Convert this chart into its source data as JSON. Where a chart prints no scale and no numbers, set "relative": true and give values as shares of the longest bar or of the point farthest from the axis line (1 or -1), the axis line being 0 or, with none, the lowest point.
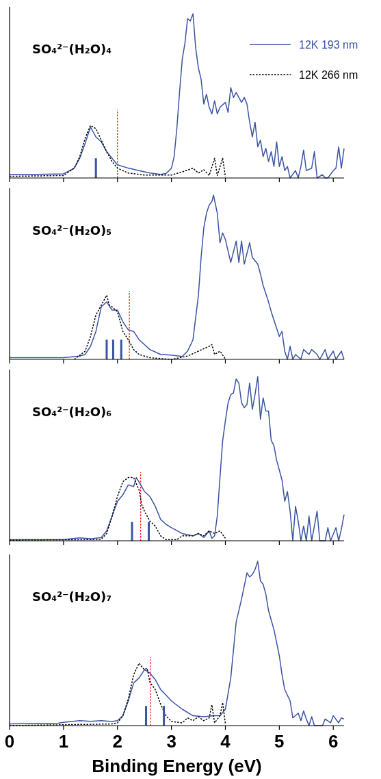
{
  "chart_data": [
    {
      "type": "line",
      "title": "SO₄²⁻(H₂O)₄",
      "relative": true,
      "xlim": [
        0,
        6.2
      ],
      "xticks": [
        0,
        1,
        2,
        3,
        4,
        5,
        6
      ],
      "tick_labels": false,
      "legend": "top right",
      "ref_lines": [
        {
          "axis": "x",
          "value": 2.0,
          "color": "#ff0000",
          "line_style": "dotted"
        }
      ],
      "series": [
        {
          "name": "12K 193 nm",
          "color": "#3a53a4",
          "line_style": "solid",
          "x": [
            0,
            0.5,
            1.0,
            1.2,
            1.3,
            1.4,
            1.5,
            1.6,
            1.7,
            1.8,
            1.9,
            2.0,
            2.2,
            2.4,
            2.6,
            2.8,
            2.9,
            3.0,
            3.05,
            3.1,
            3.15,
            3.2,
            3.25,
            3.3,
            3.35,
            3.4,
            3.45,
            3.5,
            3.55,
            3.6,
            3.65,
            3.7,
            3.75,
            3.8,
            3.85,
            3.9,
            4.0,
            4.05,
            4.1,
            4.15,
            4.2,
            4.3,
            4.35,
            4.4,
            4.45,
            4.5,
            4.55,
            4.6,
            4.65,
            4.7,
            4.75,
            4.8,
            4.85,
            4.9,
            4.95,
            5.0,
            5.05,
            5.1,
            5.15,
            5.2,
            5.3,
            5.35,
            5.4,
            5.45,
            5.5,
            5.6,
            5.65,
            5.7,
            5.8,
            5.85,
            5.9,
            6.0,
            6.05,
            6.1,
            6.15,
            6.2
          ],
          "values": [
            0.022,
            0.022,
            0.025,
            0.06,
            0.12,
            0.21,
            0.31,
            0.25,
            0.22,
            0.16,
            0.12,
            0.08,
            0.06,
            0.045,
            0.03,
            0.022,
            0.027,
            0.06,
            0.13,
            0.3,
            0.52,
            0.72,
            0.82,
            0.97,
            0.955,
            1.0,
            0.79,
            0.67,
            0.6,
            0.45,
            0.51,
            0.43,
            0.39,
            0.47,
            0.39,
            0.43,
            0.46,
            0.4,
            0.55,
            0.49,
            0.52,
            0.46,
            0.49,
            0.45,
            0.34,
            0.25,
            0.34,
            0.19,
            0.23,
            0.13,
            0.18,
            0.1,
            0.16,
            0.07,
            0.22,
            0.07,
            0.13,
            0.045,
            0.07,
            0,
            0.045,
            0,
            0.07,
            0.17,
            0.045,
            0.06,
            0.16,
            0,
            0.02,
            0,
            0,
            0.045,
            0.06,
            0.19,
            0.06,
            0.18
          ]
        },
        {
          "name": "12K 266 nm",
          "color": "#000000",
          "line_style": "dotted",
          "x": [
            0,
            1.0,
            1.2,
            1.3,
            1.4,
            1.5,
            1.6,
            1.7,
            1.8,
            1.9,
            2.0,
            2.2,
            2.5,
            3.0,
            3.2,
            3.4,
            3.5,
            3.6,
            3.7,
            3.8,
            3.85,
            3.95,
            4.0
          ],
          "values": [
            0.01,
            0.015,
            0.06,
            0.13,
            0.24,
            0.32,
            0.3,
            0.23,
            0.16,
            0.1,
            0.06,
            0.03,
            0.018,
            0.018,
            0.037,
            0.06,
            0.03,
            0.05,
            0.015,
            0.12,
            0.015,
            0.12,
            0.007
          ]
        },
        {
          "type": "bar",
          "color": "#3a53a4",
          "x": [
            1.6
          ],
          "values": [
            0.12
          ]
        }
      ]
    },
    {
      "type": "line",
      "title": "SO₄²⁻(H₂O)₅",
      "relative": true,
      "xlim": [
        0,
        6.2
      ],
      "xticks": [
        0,
        1,
        2,
        3,
        4,
        5,
        6
      ],
      "tick_labels": false,
      "ref_lines": [
        {
          "axis": "x",
          "value": 2.22,
          "color": "#ff0000",
          "line_style": "dotted"
        }
      ],
      "series": [
        {
          "color": "#3a53a4",
          "line_style": "solid",
          "x": [
            0,
            1.0,
            1.3,
            1.4,
            1.5,
            1.6,
            1.7,
            1.8,
            1.9,
            2.0,
            2.1,
            2.2,
            2.3,
            2.4,
            2.6,
            2.8,
            3.0,
            3.2,
            3.3,
            3.4,
            3.5,
            3.55,
            3.6,
            3.65,
            3.7,
            3.75,
            3.78,
            3.85,
            3.9,
            3.95,
            4.0,
            4.1,
            4.2,
            4.25,
            4.3,
            4.35,
            4.45,
            4.5,
            4.6,
            4.65,
            4.7,
            4.8,
            4.85,
            4.9,
            5.0,
            5.05,
            5.1,
            5.15,
            5.2,
            5.25,
            5.3,
            5.4,
            5.45,
            5.55,
            5.6,
            5.7,
            5.75,
            5.85,
            5.9,
            6.0,
            6.05,
            6.15,
            6.2
          ],
          "values": [
            0.01,
            0.01,
            0.02,
            0.03,
            0.08,
            0.17,
            0.32,
            0.35,
            0.3,
            0.3,
            0.23,
            0.18,
            0.17,
            0.12,
            0.06,
            0.03,
            0.026,
            0.018,
            0.05,
            0.12,
            0.39,
            0.62,
            0.8,
            0.89,
            0.94,
            0.96,
            1.0,
            0.89,
            0.71,
            0.77,
            0.73,
            0.59,
            0.72,
            0.59,
            0.72,
            0.58,
            0.71,
            0.62,
            0.58,
            0.52,
            0.45,
            0.35,
            0.29,
            0.24,
            0.14,
            0.17,
            0.05,
            0,
            0.08,
            0,
            0.03,
            0,
            0.06,
            0.03,
            0.06,
            0.03,
            0,
            0.06,
            0,
            0.05,
            0,
            0.05,
            0
          ]
        },
        {
          "color": "#000000",
          "line_style": "dotted",
          "x": [
            1.2,
            1.4,
            1.5,
            1.6,
            1.7,
            1.8,
            1.85,
            1.9,
            2.0,
            2.1,
            2.2,
            2.3,
            2.4,
            2.6,
            3.0,
            3.3,
            3.5,
            3.7,
            3.75,
            3.8,
            3.9,
            4.0
          ],
          "values": [
            0,
            0.05,
            0.14,
            0.27,
            0.33,
            0.39,
            0.33,
            0.32,
            0.29,
            0.17,
            0.12,
            0.06,
            0.03,
            0.01,
            0,
            0.02,
            0.05,
            0.08,
            0.09,
            0.03,
            0.05,
            0.003
          ]
        },
        {
          "type": "bar",
          "color": "#3a53a4",
          "x": [
            1.8,
            1.92,
            2.07
          ],
          "values": [
            0.12,
            0.12,
            0.12
          ]
        }
      ]
    },
    {
      "type": "line",
      "title": "SO₄²⁻(H₂O)₆",
      "relative": true,
      "xlim": [
        0,
        6.2
      ],
      "xticks": [
        0,
        1,
        2,
        3,
        4,
        5,
        6
      ],
      "tick_labels": false,
      "ref_lines": [
        {
          "axis": "x",
          "value": 2.43,
          "color": "#ff0000",
          "line_style": "dotted"
        }
      ],
      "series": [
        {
          "color": "#3a53a4",
          "line_style": "solid",
          "x": [
            0,
            1.0,
            1.3,
            1.5,
            1.7,
            1.8,
            1.9,
            2.0,
            2.1,
            2.2,
            2.3,
            2.35,
            2.45,
            2.5,
            2.6,
            2.7,
            2.8,
            2.9,
            3.0,
            3.2,
            3.4,
            3.5,
            3.6,
            3.7,
            3.75,
            3.8,
            3.85,
            3.9,
            3.95,
            4.0,
            4.05,
            4.1,
            4.15,
            4.2,
            4.25,
            4.3,
            4.35,
            4.4,
            4.45,
            4.5,
            4.55,
            4.6,
            4.65,
            4.7,
            4.75,
            4.8,
            4.85,
            4.9,
            4.95,
            5.0,
            5.05,
            5.1,
            5.15,
            5.2,
            5.25,
            5.3,
            5.35,
            5.4,
            5.45,
            5.5,
            5.55,
            5.6,
            5.7,
            5.75,
            5.85,
            5.9,
            5.95,
            6.05,
            6.1,
            6.15,
            6.2
          ],
          "values": [
            0.007,
            0.007,
            0.018,
            0.012,
            0.02,
            0.06,
            0.15,
            0.24,
            0.28,
            0.34,
            0.33,
            0.385,
            0.33,
            0.3,
            0.27,
            0.21,
            0.13,
            0.1,
            0.08,
            0.044,
            0.03,
            0.044,
            0.02,
            0.06,
            0.015,
            0.03,
            0.15,
            0.385,
            0.61,
            0.73,
            0.84,
            0.89,
            0.9,
            0.985,
            0.96,
            0.84,
            0.81,
            0.83,
            0.96,
            0.8,
            0.89,
            1.0,
            0.74,
            0.87,
            0.79,
            0.79,
            0.61,
            0.58,
            0.49,
            0.43,
            0.37,
            0.24,
            0.3,
            0.18,
            0,
            0.21,
            0.12,
            0,
            0.09,
            0,
            0.15,
            0,
            0.18,
            0,
            0,
            0.08,
            0,
            0.08,
            0,
            0.07,
            0.16
          ]
        },
        {
          "color": "#000000",
          "line_style": "dotted",
          "x": [
            0,
            1.5,
            1.7,
            1.8,
            1.9,
            2.0,
            2.1,
            2.2,
            2.3,
            2.4,
            2.45,
            2.5,
            2.6,
            2.7,
            2.8,
            2.9,
            3.1,
            3.2,
            3.4,
            3.5,
            3.6,
            3.7,
            3.8,
            3.9,
            4.0
          ],
          "values": [
            0.003,
            0.007,
            0.01,
            0.044,
            0.15,
            0.27,
            0.36,
            0.385,
            0.385,
            0.31,
            0.22,
            0.18,
            0.12,
            0.09,
            0.03,
            0.007,
            0.007,
            0.03,
            0.03,
            0.044,
            0.03,
            0.06,
            0.044,
            0.06,
            0.015
          ]
        },
        {
          "type": "bar",
          "color": "#3a53a4",
          "x": [
            2.27,
            2.58
          ],
          "values": [
            0.115,
            0.115
          ]
        }
      ]
    },
    {
      "type": "line",
      "title": "SO₄²⁻(H₂O)₇",
      "xlabel": "Binding Energy (eV)",
      "relative": true,
      "xlim": [
        0,
        6.2
      ],
      "xticks": [
        0,
        1,
        2,
        3,
        4,
        5,
        6
      ],
      "tick_labels": "x",
      "ref_lines": [
        {
          "axis": "x",
          "value": 2.61,
          "color": "#ff0000",
          "line_style": "dotted"
        }
      ],
      "series": [
        {
          "color": "#3a53a4",
          "line_style": "solid",
          "x": [
            0,
            0.9,
            1.0,
            1.3,
            1.5,
            1.7,
            1.9,
            2.0,
            2.1,
            2.2,
            2.3,
            2.4,
            2.5,
            2.6,
            2.7,
            2.8,
            2.9,
            3.0,
            3.2,
            3.4,
            3.6,
            3.8,
            3.9,
            4.0,
            4.1,
            4.2,
            4.3,
            4.4,
            4.45,
            4.5,
            4.55,
            4.6,
            4.65,
            4.7,
            4.75,
            4.8,
            4.9,
            5.0,
            5.05,
            5.1,
            5.2,
            5.25,
            5.35,
            5.4,
            5.45,
            5.5,
            5.55,
            5.6,
            5.65,
            5.8,
            5.85,
            5.95,
            6.0,
            6.1,
            6.15,
            6.2
          ],
          "values": [
            0.01,
            0.015,
            0.02,
            0.03,
            0.026,
            0.03,
            0.025,
            0.03,
            0.06,
            0.15,
            0.26,
            0.29,
            0.34,
            0.32,
            0.28,
            0.22,
            0.185,
            0.15,
            0.1,
            0.06,
            0.054,
            0.06,
            0.06,
            0.1,
            0.29,
            0.63,
            0.77,
            0.93,
            0.905,
            0.92,
            0.95,
            1.0,
            0.88,
            0.86,
            0.8,
            0.7,
            0.585,
            0.425,
            0.31,
            0.22,
            0.15,
            0.047,
            0.076,
            0.03,
            0.09,
            0.04,
            0,
            0.054,
            0,
            0,
            0.04,
            0.017,
            0.06,
            0.017,
            0.047,
            0.04
          ]
        },
        {
          "color": "#000000",
          "line_style": "dotted",
          "x": [
            0,
            1.9,
            2.0,
            2.1,
            2.2,
            2.3,
            2.4,
            2.5,
            2.55,
            2.6,
            2.7,
            2.8,
            2.9,
            3.0,
            3.2,
            3.3,
            3.4,
            3.5,
            3.6,
            3.7,
            3.75,
            3.8,
            3.9,
            3.95,
            4.0
          ],
          "values": [
            0,
            0.01,
            0.017,
            0.06,
            0.16,
            0.31,
            0.38,
            0.34,
            0.35,
            0.265,
            0.22,
            0.13,
            0.06,
            0.025,
            0.017,
            0.047,
            0.03,
            0.054,
            0.03,
            0.047,
            0.127,
            0.017,
            0.06,
            0.14,
            0.01
          ]
        },
        {
          "type": "bar",
          "color": "#3a53a4",
          "x": [
            2.53,
            2.86
          ],
          "values": [
            0.12,
            0.12
          ]
        }
      ]
    }
  ]
}
